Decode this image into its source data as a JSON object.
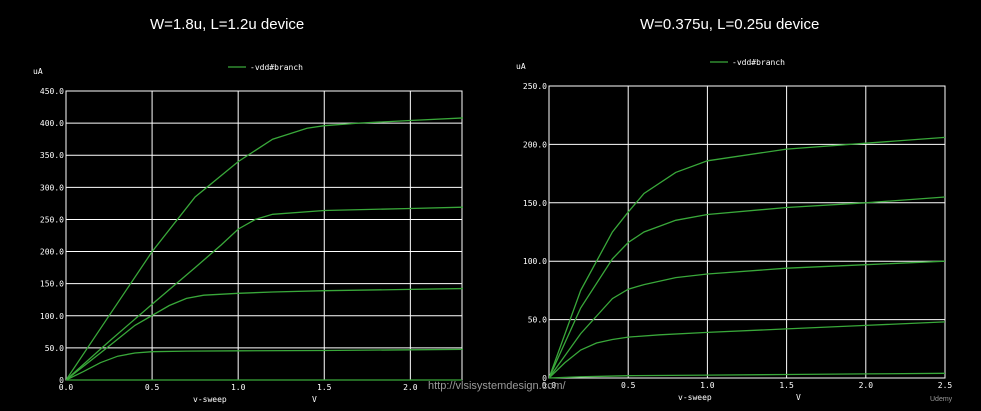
{
  "titles": {
    "left": "W=1.8u, L=1.2u device",
    "right": "W=0.375u, L=0.25u device"
  },
  "watermark": "http://vlsisystemdesign.com/",
  "brand": "Udemy",
  "colors": {
    "background": "#000000",
    "grid": "#ffffff",
    "trace": "#39a83a",
    "text": "#ffffff"
  },
  "chart_data": [
    {
      "type": "line",
      "ylabel": "uA",
      "xlabel": "v-sweep",
      "xunit": "V",
      "legend": "-vdd#branch",
      "legend_position": "top-center",
      "grid": true,
      "xlim": [
        0,
        2.3
      ],
      "ylim": [
        0,
        450
      ],
      "xticks": [
        0.0,
        0.5,
        1.0,
        1.5,
        2.0
      ],
      "xtick_labels": [
        "0.0",
        "0.5",
        "1.0",
        "1.5",
        "2.0"
      ],
      "yticks": [
        0,
        50,
        100,
        150,
        200,
        250,
        300,
        350,
        400,
        450
      ],
      "ytick_labels": [
        "0",
        "50.0",
        "100.0",
        "150.0",
        "200.0",
        "250.0",
        "300.0",
        "350.0",
        "400.0",
        "450.0"
      ],
      "series": [
        {
          "x": [
            0,
            2.3
          ],
          "y": [
            0,
            0
          ]
        },
        {
          "x": [
            0,
            0.1,
            0.2,
            0.3,
            0.4,
            0.5,
            0.7,
            1.0,
            1.5,
            2.0,
            2.45
          ],
          "y": [
            0,
            13,
            27,
            37,
            42,
            44,
            45,
            45.5,
            46,
            47,
            48
          ]
        },
        {
          "x": [
            0,
            0.2,
            0.4,
            0.6,
            0.7,
            0.8,
            1.0,
            1.2,
            1.5,
            2.0,
            2.45
          ],
          "y": [
            0,
            42,
            85,
            116,
            127,
            132,
            135,
            137,
            139,
            141,
            143
          ]
        },
        {
          "x": [
            0,
            0.25,
            0.5,
            0.75,
            0.9,
            1.0,
            1.1,
            1.2,
            1.5,
            2.0,
            2.45
          ],
          "y": [
            0,
            60,
            118,
            175,
            210,
            235,
            250,
            258,
            264,
            267,
            270
          ]
        },
        {
          "x": [
            0,
            0.25,
            0.5,
            0.75,
            1.0,
            1.2,
            1.4,
            1.5,
            1.7,
            2.0,
            2.45
          ],
          "y": [
            0,
            100,
            200,
            285,
            340,
            375,
            392,
            396,
            400,
            404,
            410
          ]
        }
      ]
    },
    {
      "type": "line",
      "ylabel": "uA",
      "xlabel": "v-sweep",
      "xunit": "V",
      "legend": "-vdd#branch",
      "legend_position": "top-center",
      "grid": true,
      "xlim": [
        0,
        2.5
      ],
      "ylim": [
        0,
        250
      ],
      "xticks": [
        0.0,
        0.5,
        1.0,
        1.5,
        2.0,
        2.5
      ],
      "xtick_labels": [
        "0.0",
        "0.5",
        "1.0",
        "1.5",
        "2.0",
        "2.5"
      ],
      "yticks": [
        0,
        50,
        100,
        150,
        200,
        250
      ],
      "ytick_labels": [
        "0",
        "50.0",
        "100.0",
        "150.0",
        "200.0",
        "250.0"
      ],
      "series": [
        {
          "x": [
            0,
            0.2,
            0.5,
            1.0,
            1.5,
            2.0,
            2.5
          ],
          "y": [
            0,
            1,
            2,
            2.5,
            3,
            3.5,
            4
          ]
        },
        {
          "x": [
            0,
            0.1,
            0.2,
            0.3,
            0.4,
            0.5,
            0.7,
            1.0,
            1.5,
            2.0,
            2.5
          ],
          "y": [
            0,
            13,
            24,
            30,
            33,
            35,
            37,
            39,
            42,
            45,
            48
          ]
        },
        {
          "x": [
            0,
            0.2,
            0.4,
            0.5,
            0.6,
            0.8,
            1.0,
            1.5,
            2.0,
            2.5
          ],
          "y": [
            0,
            38,
            68,
            76,
            80,
            86,
            89,
            94,
            97,
            100
          ]
        },
        {
          "x": [
            0,
            0.2,
            0.4,
            0.5,
            0.6,
            0.8,
            1.0,
            1.5,
            2.0,
            2.5
          ],
          "y": [
            0,
            60,
            102,
            116,
            125,
            135,
            140,
            146,
            150,
            155
          ]
        },
        {
          "x": [
            0,
            0.2,
            0.4,
            0.5,
            0.6,
            0.8,
            1.0,
            1.5,
            2.0,
            2.5
          ],
          "y": [
            0,
            75,
            125,
            142,
            158,
            176,
            186,
            196,
            201,
            206
          ]
        }
      ]
    }
  ]
}
